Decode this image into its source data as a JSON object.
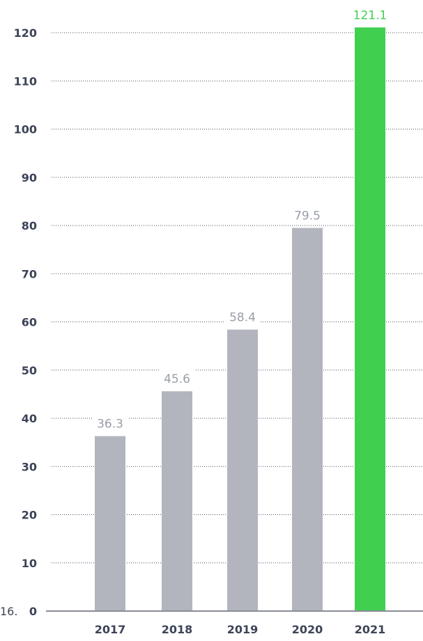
{
  "corner_label": "16.",
  "colors": {
    "bar_default": "#b2b5bd",
    "bar_highlight": "#41cf50",
    "label_default": "#9a9ea8",
    "label_highlight": "#41cf50",
    "axis_text": "#3d4457",
    "grid": "#4a4f5c",
    "baseline": "#888c96"
  },
  "chart_data": {
    "type": "bar",
    "categories": [
      "2017",
      "2018",
      "2019",
      "2020",
      "2021"
    ],
    "values": [
      36.3,
      45.6,
      58.4,
      79.5,
      121.1
    ],
    "data_labels": [
      "36.3",
      "45.6",
      "58.4",
      "79.5",
      "121.1"
    ],
    "highlight_index": 4,
    "yticks": [
      0,
      10,
      20,
      30,
      40,
      50,
      60,
      70,
      80,
      90,
      100,
      110,
      120
    ],
    "ylim": [
      0,
      120
    ],
    "grid": true,
    "grid_style": "dotted",
    "title": "",
    "xlabel": "",
    "ylabel": ""
  }
}
